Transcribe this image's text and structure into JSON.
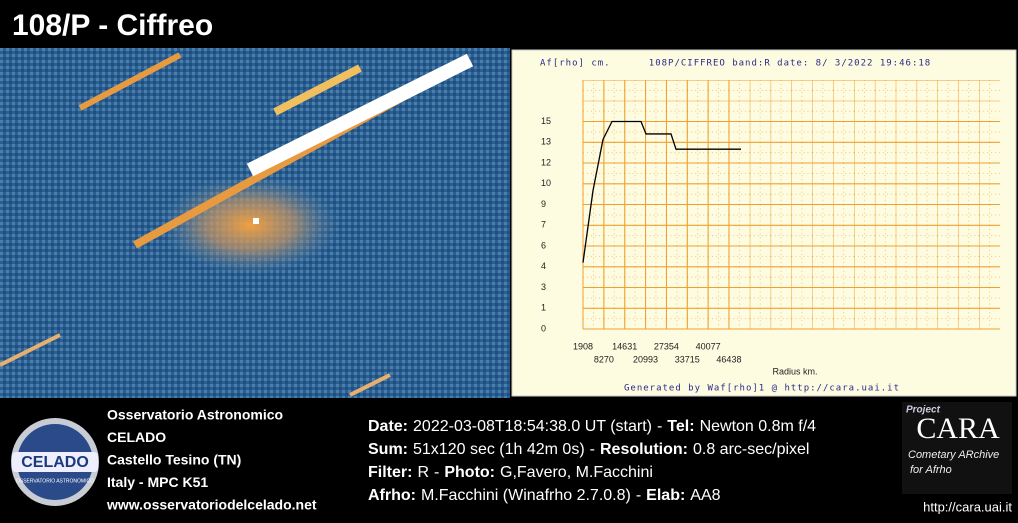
{
  "title": "108/P - Ciffreo",
  "chart_data": {
    "type": "line",
    "y_label": "Af[rho] cm.",
    "title": "108P/CIFFREO band:R date:  8/ 3/2022 19:46:18",
    "x_label": "Radius km.",
    "footer": "Generated by Waf[rho]1 @ http://cara.uai.it",
    "xlim": [
      1908,
      129136
    ],
    "xticks": [
      1908,
      8270,
      14631,
      20993,
      27354,
      33715,
      40077,
      46438
    ],
    "ylim": [
      0,
      18
    ],
    "yticks": [
      0,
      {
        "value": 1.5,
        "label": "1"
      },
      3,
      {
        "value": 4.5,
        "label": "4"
      },
      6,
      {
        "value": 7.5,
        "label": "7"
      },
      9,
      {
        "value": 10.5,
        "label": "10"
      },
      12,
      {
        "value": 13.5,
        "label": "13"
      },
      15
    ],
    "grid": true,
    "color": "#000000",
    "x": [
      1908,
      4959,
      8010,
      10755,
      19603,
      21128,
      28756,
      30281,
      50112
    ],
    "values": [
      4.8,
      10.0,
      13.7,
      15.0,
      15.0,
      14.1,
      14.1,
      13.0,
      13.0
    ]
  },
  "observatory": {
    "lines": [
      "Osservatorio Astronomico",
      "CELADO",
      "Castello Tesino (TN)",
      "Italy - MPC K51",
      "www.osservatoriodelcelado.net"
    ],
    "logo": "CELADO",
    "logo_sub": "OSSERVATORIO ASTRONOMICO"
  },
  "info": {
    "separator": "-",
    "lines": [
      [
        {
          "label": "Date:",
          "value": "2022-03-08T18:54:38.0 UT (start)"
        },
        {
          "label": "Tel:",
          "value": "Newton 0.8m f/4"
        }
      ],
      [
        {
          "label": "Sum:",
          "value": "51x120 sec (1h 42m 0s)"
        },
        {
          "label": "Resolution:",
          "value": "0.8 arc-sec/pixel"
        }
      ],
      [
        {
          "label": "Filter:",
          "value": "R"
        },
        {
          "label": "Photo:",
          "value": "G,Favero, M.Facchini"
        }
      ],
      [
        {
          "label": "Afrho:",
          "value": "M.Facchini (Winafrho 2.7.0.8)"
        },
        {
          "label": "Elab:",
          "value": "AA8"
        }
      ]
    ]
  },
  "cara": {
    "project": "Project",
    "name": "CARA",
    "line1": "Cometary ARchive",
    "line2": "for Afrho",
    "url": "http://cara.uai.it"
  }
}
